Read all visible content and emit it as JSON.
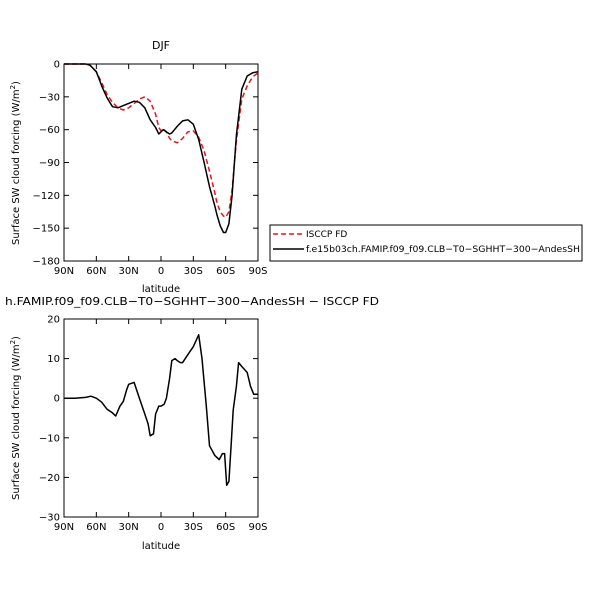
{
  "chart_data": [
    {
      "type": "line",
      "title": "DJF",
      "xlabel": "latitude",
      "ylabel": "Surface SW cloud forcing (W/m²)",
      "xlim": [
        90,
        -90
      ],
      "ylim": [
        -180,
        0
      ],
      "x_ticks": [
        90,
        60,
        30,
        0,
        -30,
        -60,
        -90
      ],
      "x_tick_labels": [
        "90N",
        "60N",
        "30N",
        "0",
        "30S",
        "60S",
        "90S"
      ],
      "y_ticks": [
        0,
        -30,
        -60,
        -90,
        -120,
        -150,
        -180
      ],
      "y_tick_labels": [
        "0",
        "−30",
        "−60",
        "−90",
        "−120",
        "−150",
        "−180"
      ],
      "legend_position": "right",
      "series": [
        {
          "name": "ISCCP FD",
          "color": "#e8141c",
          "dash": "dashed",
          "x": [
            90,
            80,
            70,
            66,
            60,
            55,
            50,
            45,
            40,
            35,
            30,
            25,
            20,
            15,
            10,
            5,
            2,
            0,
            -2,
            -5,
            -8,
            -10,
            -15,
            -20,
            -25,
            -30,
            -35,
            -40,
            -45,
            -50,
            -52,
            -55,
            -58,
            -60,
            -63,
            -66,
            -70,
            -75,
            -80,
            -85,
            -90
          ],
          "y": [
            0,
            0,
            0,
            -1,
            -7,
            -17,
            -28,
            -35,
            -40,
            -42,
            -40,
            -36,
            -32,
            -30,
            -34,
            -46,
            -58,
            -61,
            -59,
            -62,
            -68,
            -70,
            -72,
            -68,
            -62,
            -61,
            -67,
            -79,
            -98,
            -118,
            -127,
            -135,
            -139,
            -140,
            -135,
            -115,
            -70,
            -32,
            -20,
            -12,
            -8
          ]
        },
        {
          "name": "f.e15b03ch.FAMIP.f09_f09.CLB−T0−SGHHT−300−AndesSH",
          "color": "#000000",
          "dash": "solid",
          "x": [
            90,
            80,
            70,
            66,
            60,
            55,
            50,
            45,
            40,
            35,
            30,
            25,
            20,
            15,
            10,
            5,
            2,
            0,
            -2,
            -5,
            -8,
            -10,
            -15,
            -20,
            -25,
            -30,
            -35,
            -40,
            -45,
            -50,
            -52,
            -55,
            -58,
            -60,
            -63,
            -66,
            -70,
            -75,
            -80,
            -85,
            -90
          ],
          "y": [
            0,
            0,
            0,
            -1,
            -7,
            -20,
            -31,
            -39,
            -40,
            -38,
            -36,
            -34,
            -35,
            -40,
            -51,
            -58,
            -64,
            -62,
            -60,
            -62,
            -64,
            -63,
            -57,
            -52,
            -51,
            -55,
            -69,
            -90,
            -112,
            -130,
            -138,
            -148,
            -154,
            -154,
            -146,
            -120,
            -65,
            -23,
            -11,
            -8,
            -7
          ]
        }
      ]
    },
    {
      "type": "line",
      "title": "h.FAMIP.f09_f09.CLB−T0−SGHHT−300−AndesSH − ISCCP FD",
      "xlabel": "latitude",
      "ylabel": "Surface SW cloud forcing (W/m²)",
      "xlim": [
        90,
        -90
      ],
      "ylim": [
        -30,
        20
      ],
      "x_ticks": [
        90,
        60,
        30,
        0,
        -30,
        -60,
        -90
      ],
      "x_tick_labels": [
        "90N",
        "60N",
        "30N",
        "0",
        "30S",
        "60S",
        "90S"
      ],
      "y_ticks": [
        20,
        10,
        0,
        -10,
        -20,
        -30
      ],
      "y_tick_labels": [
        "20",
        "10",
        "0",
        "−10",
        "−20",
        "−30"
      ],
      "series": [
        {
          "color": "#000000",
          "x": [
            90,
            80,
            70,
            65,
            60,
            55,
            50,
            45,
            42,
            38,
            35,
            32,
            30,
            25,
            20,
            15,
            12,
            10,
            7,
            5,
            2,
            0,
            -3,
            -5,
            -8,
            -10,
            -13,
            -15,
            -18,
            -20,
            -25,
            -30,
            -35,
            -38,
            -42,
            -45,
            -50,
            -54,
            -57,
            -59,
            -61,
            -63,
            -65,
            -67,
            -70,
            -72,
            -75,
            -80,
            -83,
            -86,
            -90
          ],
          "y": [
            0,
            0,
            0.2,
            0.5,
            0,
            -1,
            -2.8,
            -3.7,
            -4.5,
            -2,
            -0.8,
            2,
            3.5,
            4,
            0,
            -4,
            -6.5,
            -9.5,
            -9,
            -4,
            -2,
            -2,
            -1.5,
            0,
            5,
            9.5,
            10,
            9.5,
            9,
            9,
            11,
            13,
            16,
            10,
            -2,
            -12,
            -14.5,
            -15.5,
            -14,
            -14,
            -22,
            -21,
            -12,
            -3,
            3,
            9,
            8,
            6.5,
            3,
            1,
            1
          ]
        }
      ]
    }
  ]
}
